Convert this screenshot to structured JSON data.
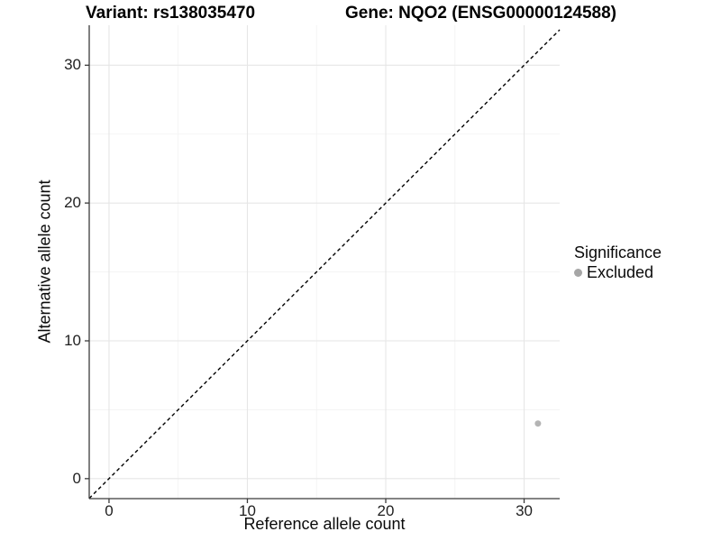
{
  "chart_data": {
    "type": "scatter",
    "titles": {
      "left": "Variant: rs138035470",
      "right": "Gene: NQO2 (ENSG00000124588)"
    },
    "xlabel": "Reference allele count",
    "ylabel": "Alternative allele count",
    "x_ticks": [
      0,
      10,
      20,
      30
    ],
    "y_ticks": [
      0,
      10,
      20,
      30
    ],
    "xlim": [
      -1.43,
      32.57
    ],
    "ylim": [
      -1.45,
      32.9
    ],
    "grid": {
      "major": true,
      "minor": true
    },
    "reference_line": {
      "type": "identity y=x",
      "style": "dashed",
      "color": "#000000"
    },
    "series": [
      {
        "name": "Excluded",
        "color": "#b4b4b4",
        "points": [
          [
            31,
            4
          ]
        ]
      }
    ],
    "legend": {
      "title": "Significance",
      "position": "right",
      "items": [
        {
          "label": "Excluded",
          "color": "#a6a6a6"
        }
      ]
    },
    "colors": {
      "axis_line": "#3b3b3b",
      "grid_major": "#e6e6e6",
      "grid_minor": "#f2f2f2",
      "background": "#ffffff"
    }
  }
}
